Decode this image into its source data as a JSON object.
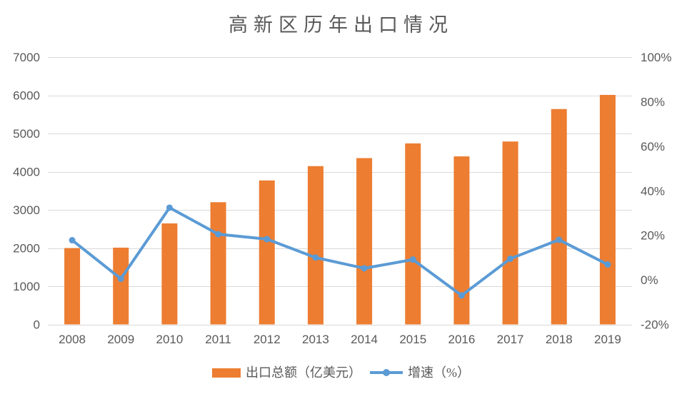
{
  "title": "高新区历年出口情况",
  "colors": {
    "bar": "#ED7D31",
    "line": "#5B9BD5",
    "grid": "#D9D9D9",
    "text": "#595959",
    "background": "#FFFFFF"
  },
  "legend": {
    "bar_label": "出口总额（亿美元）",
    "line_label": "增速（%）"
  },
  "chart_data": {
    "type": "combo-bar-line",
    "title": "高新区历年出口情况",
    "categories": [
      "2008",
      "2009",
      "2010",
      "2011",
      "2012",
      "2013",
      "2014",
      "2015",
      "2016",
      "2017",
      "2018",
      "2019"
    ],
    "series": [
      {
        "name": "出口总额（亿美元）",
        "type": "bar",
        "axis": "left",
        "color": "#ED7D31",
        "values": [
          2000,
          2010,
          2645,
          3200,
          3770,
          4145,
          4355,
          4740,
          4400,
          4790,
          5640,
          6010
        ]
      },
      {
        "name": "增速（%）",
        "type": "line",
        "axis": "right",
        "color": "#5B9BD5",
        "values": [
          17.8,
          0.5,
          32.4,
          20.5,
          18.3,
          10.0,
          5.2,
          9.1,
          -7.0,
          9.5,
          18.0,
          6.9
        ]
      }
    ],
    "left_axis": {
      "min": 0,
      "max": 7000,
      "step": 1000,
      "tick_labels": [
        "0",
        "1000",
        "2000",
        "3000",
        "4000",
        "5000",
        "6000",
        "7000"
      ]
    },
    "right_axis": {
      "min": -20,
      "max": 100,
      "step": 20,
      "tick_labels": [
        "-20%",
        "0%",
        "20%",
        "40%",
        "60%",
        "80%",
        "100%"
      ]
    },
    "grid": true,
    "legend_position": "bottom"
  }
}
